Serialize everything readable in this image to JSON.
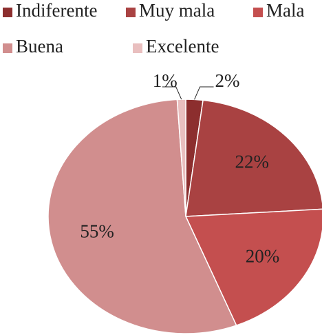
{
  "chart_data": {
    "type": "pie",
    "categories": [
      "Indiferente",
      "Muy mala",
      "Mala",
      "Buena",
      "Excelente"
    ],
    "values": [
      2,
      22,
      20,
      55,
      1
    ],
    "value_labels": [
      "2%",
      "22%",
      "20%",
      "55%",
      "1%"
    ],
    "colors": [
      "#8c2e2e",
      "#a94242",
      "#c44f4f",
      "#d18e8e",
      "#e9bfbf"
    ],
    "legend": "top"
  }
}
